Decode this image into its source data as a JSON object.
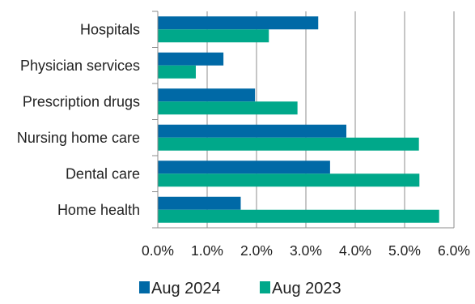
{
  "chart_data": {
    "type": "bar",
    "orientation": "horizontal",
    "categories": [
      "Hospitals",
      "Physician services",
      "Prescription drugs",
      "Nursing home care",
      "Dental care",
      "Home health"
    ],
    "series": [
      {
        "name": "Aug 2024",
        "color": "#0069A6",
        "values": [
          3.25,
          1.33,
          1.97,
          3.82,
          3.49,
          1.68
        ]
      },
      {
        "name": "Aug 2023",
        "color": "#00A88A",
        "values": [
          2.25,
          0.77,
          2.83,
          5.29,
          5.3,
          5.7
        ]
      }
    ],
    "xlim": [
      0,
      6
    ],
    "x_ticks": [
      "0.0%",
      "1.0%",
      "2.0%",
      "3.0%",
      "4.0%",
      "5.0%",
      "6.0%"
    ],
    "grid": "vertical",
    "legend_position": "bottom-center"
  }
}
